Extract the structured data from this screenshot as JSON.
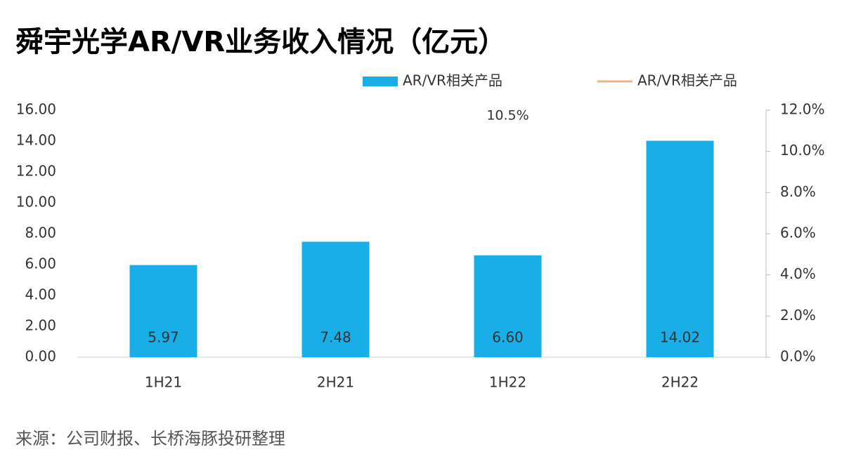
{
  "chart_data": {
    "type": "bar",
    "title": "舜宇光学AR/VR业务收入情况（亿元）",
    "source": "来源：公司财报、长桥海豚投研整理",
    "categories": [
      "1H21",
      "2H21",
      "1H22",
      "2H22"
    ],
    "series": [
      {
        "name": "AR/VR相关产品",
        "type": "bar",
        "color": "#1aaee8",
        "values": [
          5.97,
          7.48,
          6.6,
          14.02
        ],
        "value_labels": [
          "5.97",
          "7.48",
          "6.60",
          "14.02"
        ]
      },
      {
        "name": "AR/VR相关产品",
        "type": "line",
        "axis": "y2",
        "color": "#e8b48a",
        "values": [
          null,
          null,
          10.5,
          null
        ],
        "value_labels": [
          null,
          null,
          "10.5%",
          null
        ]
      }
    ],
    "ylim": [
      0,
      16
    ],
    "yticks": [
      {
        "value": 0,
        "label": "0.00"
      },
      {
        "value": 2,
        "label": "2.00"
      },
      {
        "value": 4,
        "label": "4.00"
      },
      {
        "value": 6,
        "label": "6.00"
      },
      {
        "value": 8,
        "label": "8.00"
      },
      {
        "value": 10,
        "label": "10.00"
      },
      {
        "value": 12,
        "label": "12.00"
      },
      {
        "value": 14,
        "label": "14.00"
      },
      {
        "value": 16,
        "label": "16.00"
      }
    ],
    "y2lim": [
      0,
      12
    ],
    "y2ticks": [
      {
        "value": 0,
        "label": "0.0%"
      },
      {
        "value": 2,
        "label": "2.0%"
      },
      {
        "value": 4,
        "label": "4.0%"
      },
      {
        "value": 6,
        "label": "6.0%"
      },
      {
        "value": 8,
        "label": "8.0%"
      },
      {
        "value": 10,
        "label": "10.0%"
      },
      {
        "value": 12,
        "label": "12.0%"
      }
    ],
    "grid": false,
    "legend": "top"
  }
}
